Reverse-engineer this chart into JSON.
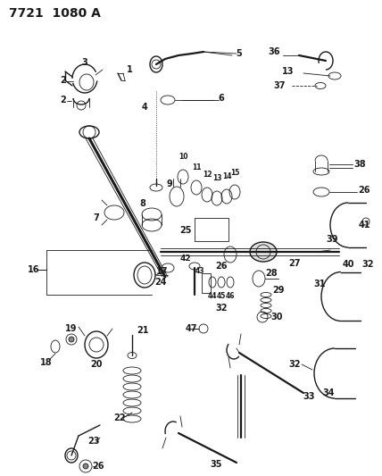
{
  "title": "7721 1080 A",
  "bg_color": "#ffffff",
  "fig_width": 4.28,
  "fig_height": 5.33,
  "dpi": 100,
  "line_color": "#1a1a1a",
  "label_fontsize": 6.5,
  "title_fontsize": 10
}
